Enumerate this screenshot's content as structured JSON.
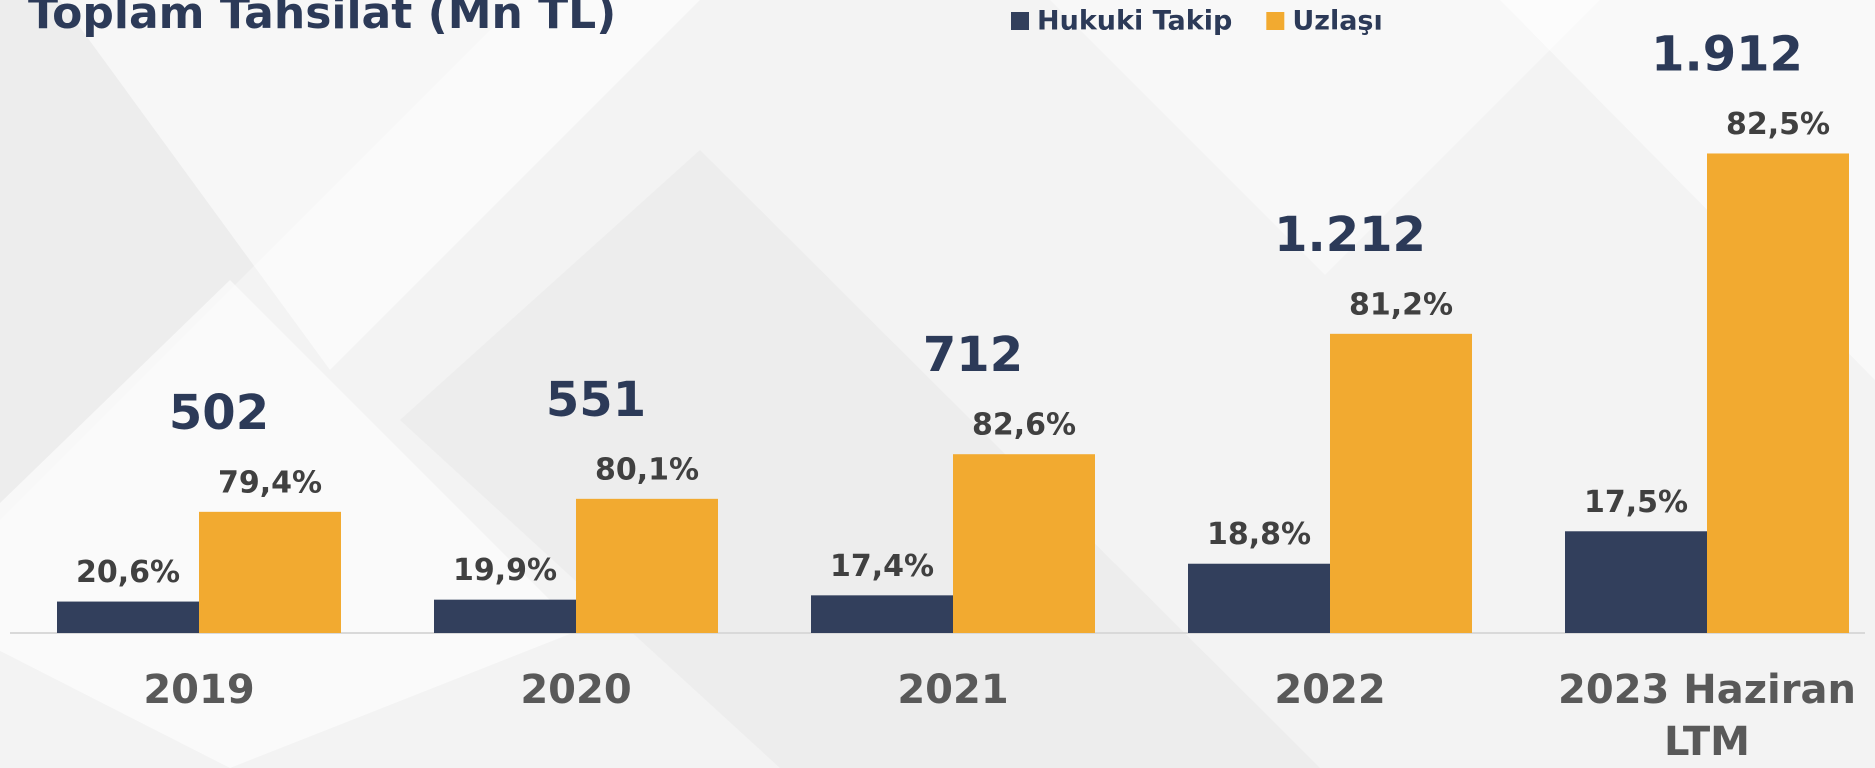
{
  "chart_data": {
    "type": "bar",
    "title": "Toplam Tahsilat (Mn TL)",
    "categories": [
      "2019",
      "2020",
      "2021",
      "2022",
      "2023 Haziran LTM"
    ],
    "totals": [
      502,
      551,
      712,
      1212,
      1912
    ],
    "total_labels": [
      "502",
      "551",
      "712",
      "1.212",
      "1.912"
    ],
    "series": [
      {
        "name": "Hukuki Takip",
        "color": "#323f5c",
        "values": [
          20.6,
          19.9,
          17.4,
          18.8,
          17.5
        ],
        "value_labels": [
          "20,6%",
          "19,9%",
          "17,4%",
          "18,8%",
          "17,5%"
        ]
      },
      {
        "name": "Uzlaşı",
        "color": "#f2aa30",
        "values": [
          79.4,
          80.1,
          82.6,
          81.2,
          82.5
        ],
        "value_labels": [
          "79,4%",
          "80,1%",
          "82,6%",
          "81,2%",
          "82,5%"
        ]
      }
    ],
    "ylim": [
      0,
      2000
    ],
    "legend": "top"
  }
}
